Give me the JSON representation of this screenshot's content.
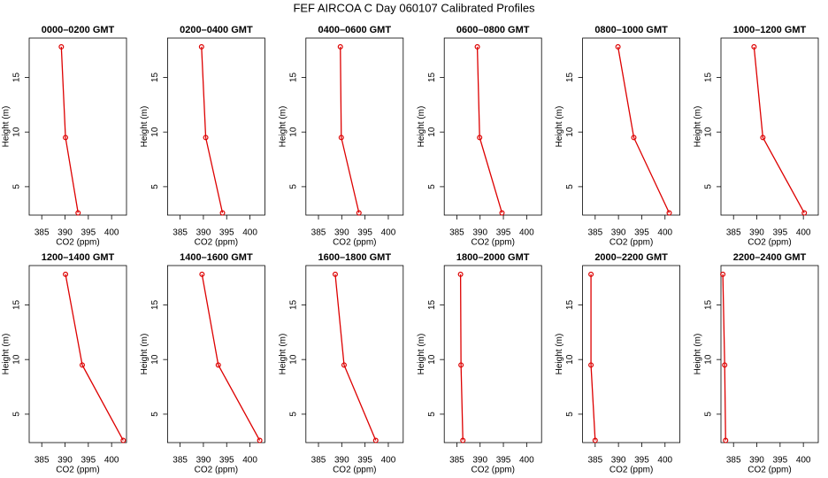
{
  "title": "FEF AIRCOA C  Day 060107  Calibrated Profiles",
  "chart_data": [
    {
      "type": "line",
      "title": "0000–0200 GMT",
      "xlabel": "CO2 (ppm)",
      "ylabel": "Height (m)",
      "color": "#dd0000",
      "x": [
        389.2,
        390.1,
        392.8
      ],
      "values": [
        17.8,
        9.5,
        2.6
      ],
      "xlim": [
        382.3,
        403.2
      ],
      "ylim": [
        2.4,
        18.6
      ],
      "xticks": [
        385,
        390,
        395,
        400
      ],
      "yticks": [
        5,
        10,
        15
      ]
    },
    {
      "type": "line",
      "title": "0200–0400 GMT",
      "xlabel": "CO2 (ppm)",
      "ylabel": "Height (m)",
      "color": "#dd0000",
      "x": [
        389.6,
        390.5,
        394.1
      ],
      "values": [
        17.8,
        9.5,
        2.6
      ],
      "xlim": [
        382.3,
        403.2
      ],
      "ylim": [
        2.4,
        18.6
      ],
      "xticks": [
        385,
        390,
        395,
        400
      ],
      "yticks": [
        5,
        10,
        15
      ]
    },
    {
      "type": "line",
      "title": "0400–0600 GMT",
      "xlabel": "CO2 (ppm)",
      "ylabel": "Height (m)",
      "color": "#dd0000",
      "x": [
        389.7,
        389.9,
        393.7
      ],
      "values": [
        17.8,
        9.5,
        2.6
      ],
      "xlim": [
        382.3,
        403.2
      ],
      "ylim": [
        2.4,
        18.6
      ],
      "xticks": [
        385,
        390,
        395,
        400
      ],
      "yticks": [
        5,
        10,
        15
      ]
    },
    {
      "type": "line",
      "title": "0600–0800 GMT",
      "xlabel": "CO2 (ppm)",
      "ylabel": "Height (m)",
      "color": "#dd0000",
      "x": [
        389.4,
        389.9,
        394.7
      ],
      "values": [
        17.8,
        9.5,
        2.6
      ],
      "xlim": [
        382.3,
        403.2
      ],
      "ylim": [
        2.4,
        18.6
      ],
      "xticks": [
        385,
        390,
        395,
        400
      ],
      "yticks": [
        5,
        10,
        15
      ]
    },
    {
      "type": "line",
      "title": "0800–1000 GMT",
      "xlabel": "CO2 (ppm)",
      "ylabel": "Height (m)",
      "color": "#dd0000",
      "x": [
        389.9,
        393.3,
        400.9
      ],
      "values": [
        17.8,
        9.5,
        2.6
      ],
      "xlim": [
        382.3,
        403.2
      ],
      "ylim": [
        2.4,
        18.6
      ],
      "xticks": [
        385,
        390,
        395,
        400
      ],
      "yticks": [
        5,
        10,
        15
      ]
    },
    {
      "type": "line",
      "title": "1000–1200 GMT",
      "xlabel": "CO2 (ppm)",
      "ylabel": "Height (m)",
      "color": "#dd0000",
      "x": [
        389.4,
        391.3,
        400.2
      ],
      "values": [
        17.8,
        9.5,
        2.6
      ],
      "xlim": [
        382.3,
        403.2
      ],
      "ylim": [
        2.4,
        18.6
      ],
      "xticks": [
        385,
        390,
        395,
        400
      ],
      "yticks": [
        5,
        10,
        15
      ]
    },
    {
      "type": "line",
      "title": "1200–1400 GMT",
      "xlabel": "CO2 (ppm)",
      "ylabel": "Height (m)",
      "color": "#dd0000",
      "x": [
        390.1,
        393.7,
        402.5
      ],
      "values": [
        17.8,
        9.5,
        2.6
      ],
      "xlim": [
        382.3,
        403.2
      ],
      "ylim": [
        2.4,
        18.6
      ],
      "xticks": [
        385,
        390,
        395,
        400
      ],
      "yticks": [
        5,
        10,
        15
      ]
    },
    {
      "type": "line",
      "title": "1400–1600 GMT",
      "xlabel": "CO2 (ppm)",
      "ylabel": "Height (m)",
      "color": "#dd0000",
      "x": [
        389.7,
        393.2,
        402.1
      ],
      "values": [
        17.8,
        9.5,
        2.6
      ],
      "xlim": [
        382.3,
        403.2
      ],
      "ylim": [
        2.4,
        18.6
      ],
      "xticks": [
        385,
        390,
        395,
        400
      ],
      "yticks": [
        5,
        10,
        15
      ]
    },
    {
      "type": "line",
      "title": "1600–1800 GMT",
      "xlabel": "CO2 (ppm)",
      "ylabel": "Height (m)",
      "color": "#dd0000",
      "x": [
        388.6,
        390.5,
        397.3
      ],
      "values": [
        17.8,
        9.5,
        2.6
      ],
      "xlim": [
        382.3,
        403.2
      ],
      "ylim": [
        2.4,
        18.6
      ],
      "xticks": [
        385,
        390,
        395,
        400
      ],
      "yticks": [
        5,
        10,
        15
      ]
    },
    {
      "type": "line",
      "title": "1800–2000 GMT",
      "xlabel": "CO2 (ppm)",
      "ylabel": "Height (m)",
      "color": "#dd0000",
      "x": [
        385.8,
        385.9,
        386.3
      ],
      "values": [
        17.8,
        9.5,
        2.6
      ],
      "xlim": [
        382.3,
        403.2
      ],
      "ylim": [
        2.4,
        18.6
      ],
      "xticks": [
        385,
        390,
        395,
        400
      ],
      "yticks": [
        5,
        10,
        15
      ]
    },
    {
      "type": "line",
      "title": "2000–2200 GMT",
      "xlabel": "CO2 (ppm)",
      "ylabel": "Height (m)",
      "color": "#dd0000",
      "x": [
        384.1,
        384.1,
        385.0
      ],
      "values": [
        17.8,
        9.5,
        2.6
      ],
      "xlim": [
        382.3,
        403.2
      ],
      "ylim": [
        2.4,
        18.6
      ],
      "xticks": [
        385,
        390,
        395,
        400
      ],
      "yticks": [
        5,
        10,
        15
      ]
    },
    {
      "type": "line",
      "title": "2200–2400 GMT",
      "xlabel": "CO2 (ppm)",
      "ylabel": "Height (m)",
      "color": "#dd0000",
      "x": [
        382.7,
        383.1,
        383.3
      ],
      "values": [
        17.8,
        9.5,
        2.6
      ],
      "xlim": [
        382.3,
        403.2
      ],
      "ylim": [
        2.4,
        18.6
      ],
      "xticks": [
        385,
        390,
        395,
        400
      ],
      "yticks": [
        5,
        10,
        15
      ]
    }
  ]
}
